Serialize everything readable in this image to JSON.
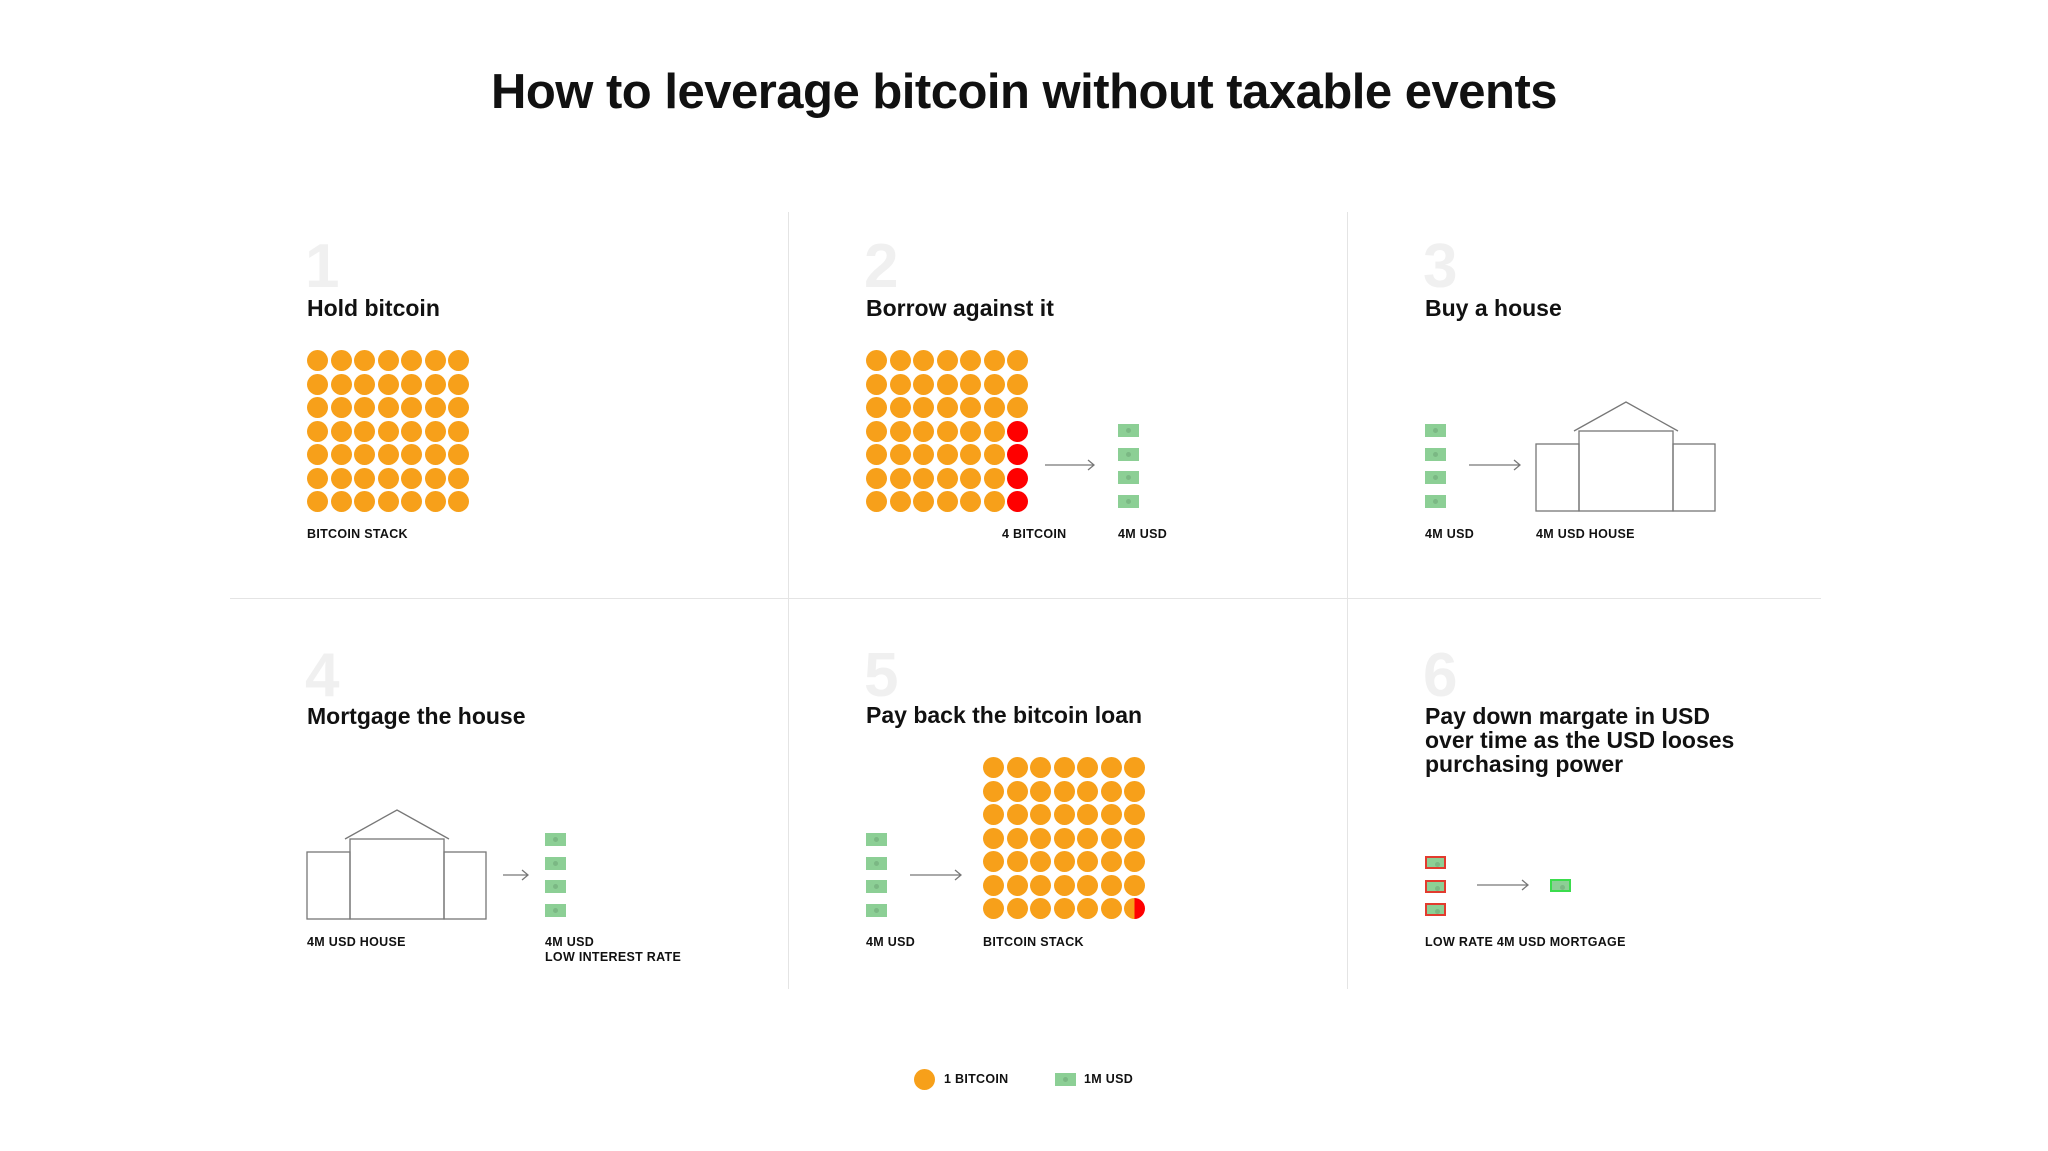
{
  "title": "How to leverage bitcoin without taxable events",
  "colors": {
    "bitcoin": "#f7a01a",
    "borrowed": "#ff0000",
    "usd": "#8ccf95"
  },
  "steps": [
    {
      "number": "1",
      "heading": "Hold bitcoin",
      "labels": [
        "BITCOIN STACK"
      ]
    },
    {
      "number": "2",
      "heading": "Borrow against it",
      "labels": [
        "4 BITCOIN",
        "4M USD"
      ]
    },
    {
      "number": "3",
      "heading": "Buy a house",
      "labels": [
        "4M USD",
        "4M USD HOUSE"
      ]
    },
    {
      "number": "4",
      "heading": "Mortgage the house",
      "labels": [
        "4M USD HOUSE",
        "4M USD",
        "LOW INTEREST RATE"
      ]
    },
    {
      "number": "5",
      "heading": "Pay back the bitcoin loan",
      "labels": [
        "4M USD",
        "BITCOIN STACK"
      ]
    },
    {
      "number": "6",
      "heading": "Pay down margate in USD over time as the USD looses purchasing power",
      "labels": [
        "LOW RATE 4M USD MORTGAGE"
      ]
    }
  ],
  "legend": [
    {
      "label": "1 BITCOIN",
      "icon": "bitcoin-circle"
    },
    {
      "label": "1M USD",
      "icon": "usd-bill"
    }
  ]
}
